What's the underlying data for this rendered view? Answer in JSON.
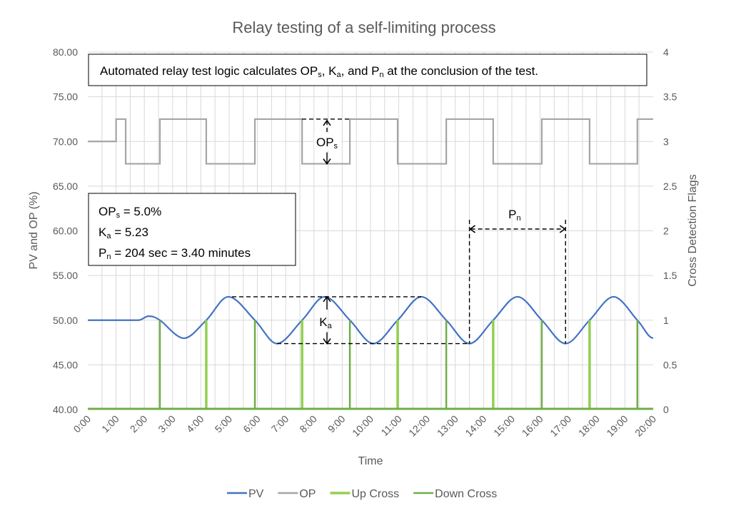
{
  "chart_data": {
    "type": "line",
    "title": "Relay testing of a self-limiting process",
    "xlabel": "Time",
    "ylabel": "PV and OP (%)",
    "y2label": "Cross Detection Flags",
    "xlim": [
      0,
      20
    ],
    "ylim": [
      40,
      80
    ],
    "y2lim": [
      0,
      4
    ],
    "x_ticks": [
      "0:00",
      "1:00",
      "2:00",
      "3:00",
      "4:00",
      "5:00",
      "6:00",
      "7:00",
      "8:00",
      "9:00",
      "10:00",
      "11:00",
      "12:00",
      "13:00",
      "14:00",
      "15:00",
      "16:00",
      "17:00",
      "18:00",
      "19:00",
      "20:00"
    ],
    "y_ticks": [
      "40.00",
      "45.00",
      "50.00",
      "55.00",
      "60.00",
      "65.00",
      "70.00",
      "75.00",
      "80.00"
    ],
    "y2_ticks": [
      "0",
      "0.5",
      "1",
      "1.5",
      "2",
      "2.5",
      "3",
      "3.5",
      "4"
    ],
    "grid": true,
    "legend_position": "bottom",
    "series": [
      {
        "name": "PV",
        "color": "#4472C4",
        "axis": "left",
        "points": [
          [
            0,
            50
          ],
          [
            1.8,
            50
          ],
          [
            2.15,
            50.45
          ],
          [
            2.55,
            50
          ],
          [
            3.4,
            47.98
          ],
          [
            4.19,
            50
          ],
          [
            4.97,
            52.62
          ],
          [
            5.91,
            50
          ],
          [
            6.69,
            47.38
          ],
          [
            7.58,
            50
          ],
          [
            8.38,
            52.62
          ],
          [
            9.27,
            50
          ],
          [
            10.1,
            47.38
          ],
          [
            10.96,
            50
          ],
          [
            11.8,
            52.62
          ],
          [
            12.68,
            50
          ],
          [
            13.5,
            47.38
          ],
          [
            14.34,
            50
          ],
          [
            15.2,
            52.62
          ],
          [
            16.06,
            50
          ],
          [
            16.9,
            47.38
          ],
          [
            17.75,
            50
          ],
          [
            18.6,
            52.62
          ],
          [
            19.44,
            50
          ],
          [
            20,
            48
          ]
        ]
      },
      {
        "name": "OP",
        "color": "#A5A5A5",
        "axis": "left",
        "step": true,
        "points": [
          [
            0,
            70
          ],
          [
            1.0,
            72.5
          ],
          [
            1.34,
            67.5
          ],
          [
            2.55,
            72.5
          ],
          [
            4.19,
            67.5
          ],
          [
            5.91,
            72.5
          ],
          [
            7.58,
            67.5
          ],
          [
            9.27,
            72.5
          ],
          [
            10.96,
            67.5
          ],
          [
            12.68,
            72.5
          ],
          [
            14.34,
            67.5
          ],
          [
            16.06,
            72.5
          ],
          [
            17.75,
            67.5
          ],
          [
            19.44,
            72.5
          ],
          [
            20,
            72.5
          ]
        ]
      },
      {
        "name": "Up Cross",
        "color": "#92D050",
        "axis": "right",
        "flag_value": 1,
        "flag_times": [
          4.19,
          7.58,
          10.96,
          14.34,
          17.75
        ]
      },
      {
        "name": "Down Cross",
        "color": "#70AD47",
        "axis": "right",
        "flag_value": 1,
        "flag_times": [
          2.55,
          5.91,
          9.27,
          12.68,
          16.06,
          19.44
        ]
      }
    ],
    "annotations": {
      "top_box": [
        "Automated relay test logic calculates OP",
        "s",
        ", K",
        "a",
        ", and P",
        "n",
        " at the conclusion of the test."
      ],
      "results_box": [
        [
          "OP",
          "s",
          " = 5.0%"
        ],
        [
          "K",
          "a",
          " = 5.23"
        ],
        [
          "P",
          "n",
          " = 204 sec = 3.40 minutes"
        ]
      ],
      "ops_label": [
        "OP",
        "s"
      ],
      "ka_label": [
        "K",
        "a"
      ],
      "pn_label": [
        "P",
        "n"
      ]
    }
  }
}
